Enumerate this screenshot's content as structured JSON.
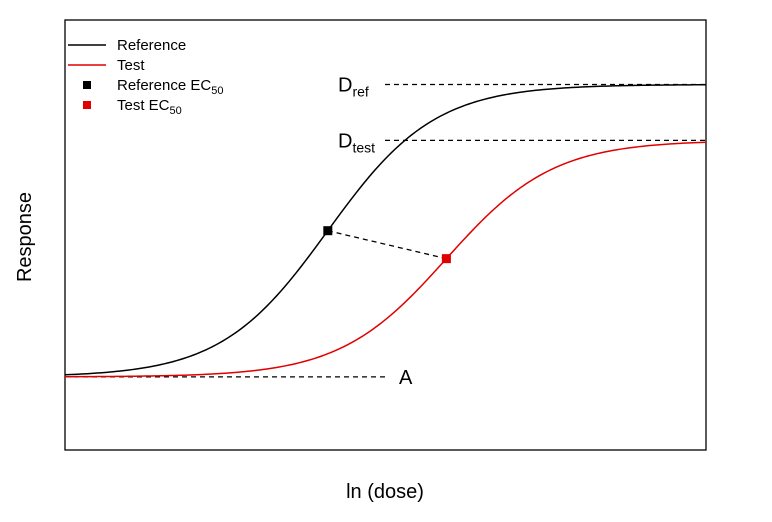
{
  "chart_data": {
    "type": "line",
    "title": "",
    "xlabel": "ln (dose)",
    "ylabel": "Response",
    "xlim": [
      -5,
      5
    ],
    "ylim": [
      0,
      1
    ],
    "grid": false,
    "legend_position": "top-left",
    "legend": [
      {
        "label": "Reference",
        "kind": "line",
        "color": "#000000"
      },
      {
        "label": "Test",
        "kind": "line",
        "color": "#e00000"
      },
      {
        "label": "Reference EC",
        "sub": "50",
        "kind": "square",
        "color": "#000000"
      },
      {
        "label": "Test EC",
        "sub": "50",
        "kind": "square",
        "color": "#e00000"
      }
    ],
    "series": [
      {
        "name": "Reference",
        "color": "#000000",
        "lower": 0.17,
        "upper": 0.85,
        "ec50": -0.9,
        "slope": 1.2
      },
      {
        "name": "Test",
        "color": "#e00000",
        "lower": 0.17,
        "upper": 0.72,
        "ec50": 0.95,
        "slope": 1.2
      }
    ],
    "ec50_points": [
      {
        "name": "Reference EC50",
        "x": -0.9,
        "y": 0.51,
        "color": "#000000"
      },
      {
        "name": "Test EC50",
        "x": 0.95,
        "y": 0.445,
        "color": "#e00000"
      }
    ],
    "annotations": [
      {
        "label": "D",
        "sub": "ref",
        "y": 0.85
      },
      {
        "label": "D",
        "sub": "test",
        "y": 0.72
      },
      {
        "label": "A",
        "sub": "",
        "y": 0.17
      }
    ]
  }
}
